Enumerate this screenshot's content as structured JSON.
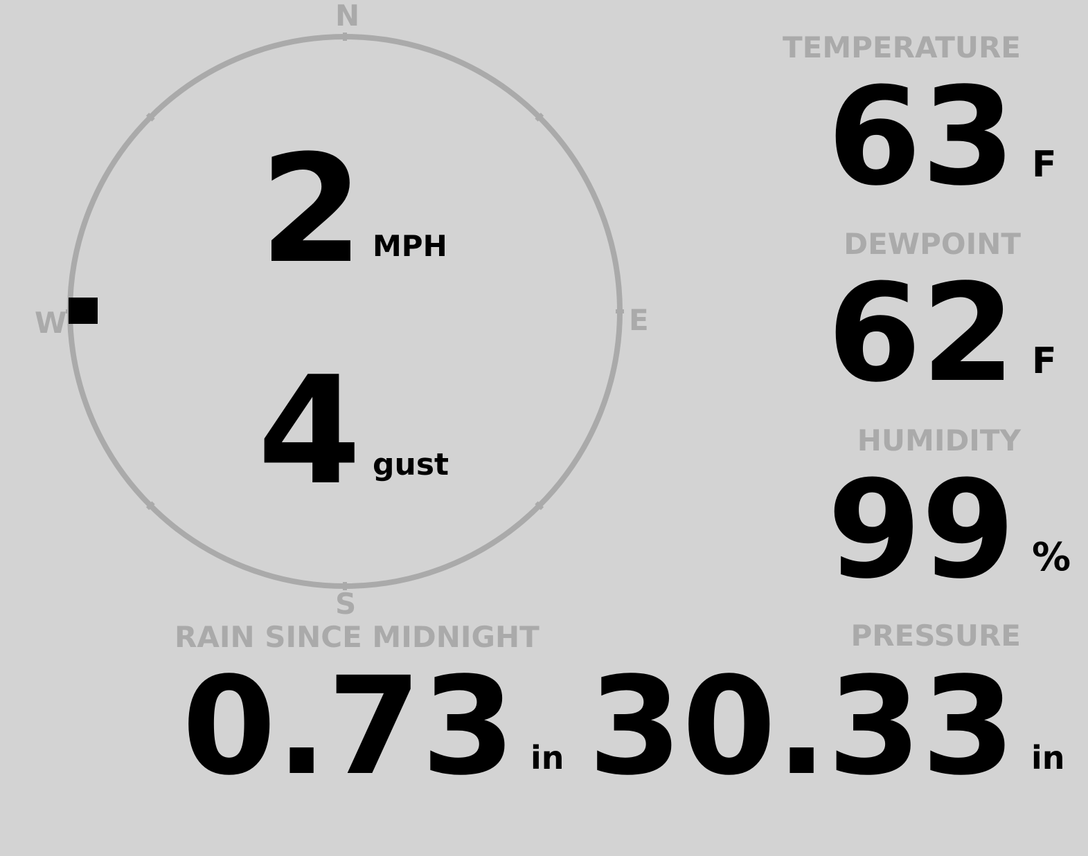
{
  "wind": {
    "speed": "2",
    "speed_unit": "MPH",
    "gust": "4",
    "gust_unit": "gust",
    "direction_degrees": 270,
    "compass": {
      "n": "N",
      "e": "E",
      "s": "S",
      "w": "W"
    }
  },
  "temperature": {
    "label": "TEMPERATURE",
    "value": "63",
    "unit": "F"
  },
  "dewpoint": {
    "label": "DEWPOINT",
    "value": "62",
    "unit": "F"
  },
  "humidity": {
    "label": "HUMIDITY",
    "value": "99",
    "unit": "%"
  },
  "rain": {
    "label": "RAIN SINCE MIDNIGHT",
    "value": "0.73",
    "unit": "in"
  },
  "pressure": {
    "label": "PRESSURE",
    "value": "30.33",
    "unit": "in"
  },
  "colors": {
    "background": "#d3d3d3",
    "label": "#aaaaaa",
    "value": "#000000",
    "dial": "#aaaaaa"
  }
}
